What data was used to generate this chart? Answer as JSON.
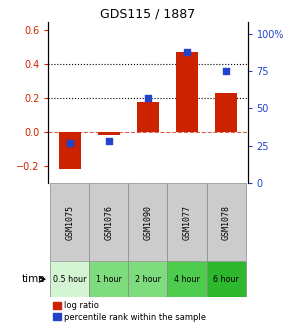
{
  "title": "GDS115 / 1887",
  "categories": [
    "GSM1075",
    "GSM1076",
    "GSM1090",
    "GSM1077",
    "GSM1078"
  ],
  "time_labels": [
    "0.5 hour",
    "1 hour",
    "2 hour",
    "4 hour",
    "6 hour"
  ],
  "time_colors": [
    "#d4f5d4",
    "#7edc7e",
    "#7edc7e",
    "#4dcc4d",
    "#2db82d"
  ],
  "bar_values": [
    -0.22,
    -0.02,
    0.175,
    0.47,
    0.23
  ],
  "percentile_values": [
    27,
    28,
    57,
    88,
    75
  ],
  "bar_color": "#cc2200",
  "dot_color": "#2244cc",
  "ylim_left": [
    -0.3,
    0.65
  ],
  "ylim_right": [
    0,
    108.333
  ],
  "yticks_left": [
    -0.2,
    0.0,
    0.2,
    0.4,
    0.6
  ],
  "yticks_right": [
    0,
    25,
    50,
    75,
    100
  ],
  "ytick_labels_right": [
    "0",
    "25",
    "50",
    "75",
    "100%"
  ],
  "hlines": [
    0.2,
    0.4
  ],
  "zero_line": 0.0,
  "background_color": "#ffffff",
  "bar_width": 0.55,
  "gsm_bg": "#cccccc",
  "n_categories": 5
}
